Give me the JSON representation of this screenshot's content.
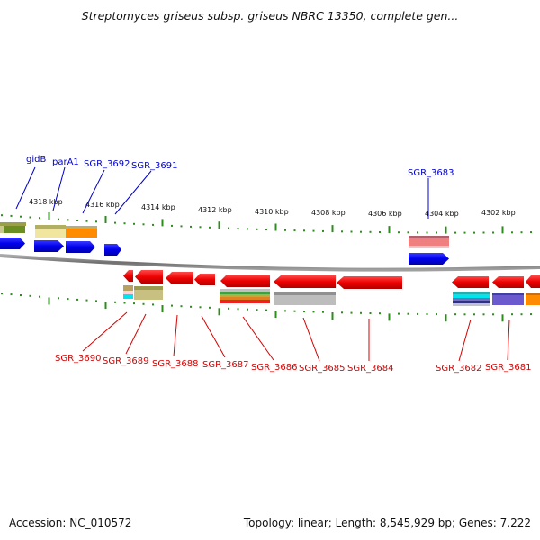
{
  "title": "Streptomyces griseus subsp. griseus NBRC 13350, complete gen...",
  "footer": {
    "accession": "Accession: NC_010572",
    "summary": "Topology: linear; Length: 8,545,929 bp; Genes: 7,222"
  },
  "colors": {
    "top_label": "#0000cc",
    "bottom_label": "#d40000",
    "ruler": "#2e8b1e",
    "backbone": "#808080",
    "gene_blue": "#0000ee",
    "gene_red": "#ee0000"
  },
  "ruler_labels": [
    "4318 kbp",
    "4316 kbp",
    "4314 kbp",
    "4312 kbp",
    "4310 kbp",
    "4308 kbp",
    "4306 kbp",
    "4304 kbp",
    "4302 kbp"
  ],
  "top_gene_labels": [
    "gidB",
    "parA1",
    "SGR_3692",
    "SGR_3691",
    "SGR_3683"
  ],
  "bottom_gene_labels": [
    "SGR_3690",
    "SGR_3689",
    "SGR_3688",
    "SGR_3687",
    "SGR_3686",
    "SGR_3685",
    "SGR_3684",
    "SGR_3682",
    "SGR_3681"
  ]
}
